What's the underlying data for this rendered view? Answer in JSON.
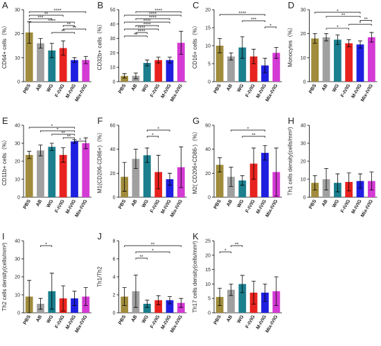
{
  "chart_data": [
    {
      "type": "bar",
      "panel": "A",
      "ylabel": "CD64+ cells（%）",
      "categories": [
        "PBS",
        "AB",
        "WG",
        "F-IVIG",
        "M-IVIG",
        "Mix-IVIG"
      ],
      "colors": [
        "#a08c3c",
        "#a0a0a0",
        "#1b7f8e",
        "#e8231f",
        "#1f1fe0",
        "#d43ad4"
      ],
      "values": [
        20.5,
        16,
        13,
        14,
        9,
        9
      ],
      "errors": [
        4.5,
        2,
        3,
        3,
        1,
        1.5
      ],
      "ylim": [
        0,
        30
      ],
      "yticks": [
        0,
        10,
        20,
        30
      ],
      "significance": [
        {
          "groups": [
            2,
            4
          ],
          "label": "**"
        },
        {
          "groups": [
            3,
            5
          ],
          "label": "**"
        },
        {
          "groups": [
            3,
            4
          ],
          "label": "**"
        },
        {
          "groups": [
            0,
            4
          ],
          "label": "****"
        },
        {
          "groups": [
            0,
            2
          ],
          "label": "***"
        },
        {
          "groups": [
            0,
            3
          ],
          "label": "**"
        },
        {
          "groups": [
            0,
            5
          ],
          "label": "****"
        }
      ]
    },
    {
      "type": "bar",
      "panel": "B",
      "ylabel": "CD32b+ cells（%）",
      "categories": [
        "PBS",
        "AB",
        "WG",
        "F-IVIG",
        "M-IVIG",
        "Mix-IVIG"
      ],
      "colors": [
        "#a08c3c",
        "#a0a0a0",
        "#1b7f8e",
        "#e8231f",
        "#1f1fe0",
        "#d43ad4"
      ],
      "values": [
        4,
        4,
        13,
        15,
        15,
        27
      ],
      "errors": [
        1.5,
        2,
        2,
        2,
        2,
        8
      ],
      "ylim": [
        0,
        50
      ],
      "yticks": [
        0,
        10,
        20,
        30,
        40,
        50
      ],
      "significance": [
        {
          "groups": [
            0,
            2
          ],
          "label": "**"
        },
        {
          "groups": [
            1,
            2
          ],
          "label": "****"
        },
        {
          "groups": [
            0,
            3
          ],
          "label": "****"
        },
        {
          "groups": [
            1,
            3
          ],
          "label": "****"
        },
        {
          "groups": [
            0,
            4
          ],
          "label": "****"
        },
        {
          "groups": [
            1,
            4
          ],
          "label": "****"
        },
        {
          "groups": [
            0,
            5
          ],
          "label": "****"
        },
        {
          "groups": [
            1,
            5
          ],
          "label": "****"
        }
      ]
    },
    {
      "type": "bar",
      "panel": "C",
      "ylabel": "CD16+ cells（%）",
      "categories": [
        "PBS",
        "AB",
        "WG",
        "F-IVIG",
        "M-IVIG",
        "Mix-IVIG"
      ],
      "colors": [
        "#a08c3c",
        "#a0a0a0",
        "#1b7f8e",
        "#e8231f",
        "#1f1fe0",
        "#d43ad4"
      ],
      "values": [
        10,
        7,
        9.5,
        7,
        4.5,
        8
      ],
      "errors": [
        2,
        1,
        3,
        2,
        2,
        1.5
      ],
      "ylim": [
        0,
        20
      ],
      "yticks": [
        0,
        5,
        10,
        15,
        20
      ],
      "significance": [
        {
          "groups": [
            4,
            5
          ],
          "label": "*"
        },
        {
          "groups": [
            2,
            4
          ],
          "label": "***"
        },
        {
          "groups": [
            0,
            4
          ],
          "label": "****"
        }
      ]
    },
    {
      "type": "bar",
      "panel": "D",
      "ylabel": "Monocytes（%）",
      "categories": [
        "PBS",
        "AB",
        "WG",
        "F-IVIG",
        "M-IVIG",
        "Mix-IVIG"
      ],
      "colors": [
        "#a08c3c",
        "#a0a0a0",
        "#1b7f8e",
        "#e8231f",
        "#1f1fe0",
        "#d43ad4"
      ],
      "values": [
        18,
        18.5,
        17.5,
        16,
        15.5,
        18.5
      ],
      "errors": [
        2,
        1.5,
        2,
        1.5,
        1.5,
        2
      ],
      "ylim": [
        0,
        30
      ],
      "yticks": [
        0,
        10,
        20,
        30
      ],
      "significance": [
        {
          "groups": [
            1,
            3
          ],
          "label": "*"
        },
        {
          "groups": [
            3,
            5
          ],
          "label": "*"
        },
        {
          "groups": [
            4,
            5
          ],
          "label": "**"
        },
        {
          "groups": [
            1,
            4
          ],
          "label": "**"
        },
        {
          "groups": [
            0,
            4
          ],
          "label": "*"
        }
      ]
    },
    {
      "type": "bar",
      "panel": "E",
      "ylabel": "CD11b+ cells（%）",
      "categories": [
        "PBS",
        "AB",
        "WG",
        "F-IVIG",
        "M-IVIG",
        "Mix-IVIG"
      ],
      "colors": [
        "#a08c3c",
        "#a0a0a0",
        "#1b7f8e",
        "#e8231f",
        "#1f1fe0",
        "#d43ad4"
      ],
      "values": [
        23.5,
        26,
        28,
        23.5,
        31,
        30
      ],
      "errors": [
        2,
        3,
        2,
        4,
        1,
        3
      ],
      "ylim": [
        0,
        40
      ],
      "yticks": [
        0,
        10,
        20,
        30,
        40
      ],
      "significance": [
        {
          "groups": [
            4,
            5
          ],
          "label": "*"
        },
        {
          "groups": [
            3,
            4
          ],
          "label": "**"
        },
        {
          "groups": [
            2,
            4
          ],
          "label": "**"
        },
        {
          "groups": [
            1,
            4
          ],
          "label": "*"
        },
        {
          "groups": [
            0,
            4
          ],
          "label": "*"
        }
      ]
    },
    {
      "type": "bar",
      "panel": "F",
      "ylabel": "M1(CD206-CD86+)（%）",
      "categories": [
        "PBS",
        "AB",
        "WG",
        "F-IVIG",
        "M-IVIG",
        "Mix-IVIG"
      ],
      "colors": [
        "#a08c3c",
        "#a0a0a0",
        "#1b7f8e",
        "#e8231f",
        "#1f1fe0",
        "#d43ad4"
      ],
      "values": [
        17,
        32,
        35,
        21,
        15,
        25
      ],
      "errors": [
        12,
        8,
        6,
        14,
        5,
        17
      ],
      "ylim": [
        0,
        60
      ],
      "yticks": [
        0,
        20,
        40,
        60
      ],
      "significance": [
        {
          "groups": [
            2,
            3
          ],
          "label": "*"
        },
        {
          "groups": [
            2,
            4
          ],
          "label": "*"
        }
      ]
    },
    {
      "type": "bar",
      "panel": "G",
      "ylabel": "M2( CD206+CD86-)（%）",
      "categories": [
        "PBS",
        "AB",
        "WG",
        "F-IVIG",
        "M-IVIG",
        "Mix-IVIG"
      ],
      "colors": [
        "#a08c3c",
        "#a0a0a0",
        "#1b7f8e",
        "#e8231f",
        "#1f1fe0",
        "#d43ad4"
      ],
      "values": [
        27,
        17,
        14,
        28,
        37,
        21
      ],
      "errors": [
        6,
        8,
        4,
        13,
        6,
        20
      ],
      "ylim": [
        0,
        60
      ],
      "yticks": [
        0,
        20,
        40,
        60
      ],
      "significance": [
        {
          "groups": [
            2,
            4
          ],
          "label": "**"
        },
        {
          "groups": [
            1,
            4
          ],
          "label": "*"
        }
      ]
    },
    {
      "type": "bar",
      "panel": "H",
      "ylabel": "Th1 cells density(cells/mm²)",
      "categories": [
        "PBS",
        "AB",
        "WG",
        "F-IVIG",
        "M-IVIG",
        "Mix-IVIG"
      ],
      "colors": [
        "#a08c3c",
        "#a0a0a0",
        "#1b7f8e",
        "#e8231f",
        "#1f1fe0",
        "#d43ad4"
      ],
      "values": [
        8,
        10,
        8,
        8.5,
        9,
        9
      ],
      "errors": [
        4,
        6,
        5,
        5,
        4,
        5
      ],
      "ylim": [
        0,
        40
      ],
      "yticks": [
        0,
        10,
        20,
        30,
        40
      ],
      "significance": []
    },
    {
      "type": "bar",
      "panel": "I",
      "ylabel": "Th2 cells density(cells/mm²)",
      "categories": [
        "PBS",
        "AB",
        "WG",
        "F-IVIG",
        "M-IVIG",
        "Mix-IVIG"
      ],
      "colors": [
        "#a08c3c",
        "#a0a0a0",
        "#1b7f8e",
        "#e8231f",
        "#1f1fe0",
        "#d43ad4"
      ],
      "values": [
        9,
        5,
        12,
        8,
        8,
        9
      ],
      "errors": [
        9,
        3,
        10,
        7,
        4,
        5
      ],
      "ylim": [
        0,
        40
      ],
      "yticks": [
        0,
        10,
        20,
        30,
        40
      ],
      "significance": [
        {
          "groups": [
            1,
            2
          ],
          "label": "*"
        }
      ]
    },
    {
      "type": "bar",
      "panel": "J",
      "ylabel": "Th1/Th2",
      "categories": [
        "PBS",
        "AB",
        "WG",
        "F-IVIG",
        "M-IVIG",
        "Mix-IVIG"
      ],
      "colors": [
        "#a08c3c",
        "#a0a0a0",
        "#1b7f8e",
        "#e8231f",
        "#1f1fe0",
        "#d43ad4"
      ],
      "values": [
        1.8,
        2.4,
        1.0,
        1.4,
        1.4,
        1.1
      ],
      "errors": [
        1,
        1.8,
        0.4,
        0.5,
        0.4,
        0.5
      ],
      "ylim": [
        0,
        8
      ],
      "yticks": [
        0,
        2,
        4,
        6,
        8
      ],
      "significance": [
        {
          "groups": [
            1,
            2
          ],
          "label": "**"
        },
        {
          "groups": [
            1,
            4
          ],
          "label": "*"
        },
        {
          "groups": [
            0,
            5
          ],
          "label": "**"
        }
      ]
    },
    {
      "type": "bar",
      "panel": "K",
      "ylabel": "Th17 cells density(cells/mm²)",
      "categories": [
        "PBS",
        "AB",
        "WG",
        "F-IVIG",
        "M-IVIG",
        "Mix-IVIG"
      ],
      "colors": [
        "#a08c3c",
        "#a0a0a0",
        "#1b7f8e",
        "#e8231f",
        "#1f1fe0",
        "#d43ad4"
      ],
      "values": [
        5.5,
        8,
        10,
        7,
        7,
        7.5
      ],
      "errors": [
        3,
        2,
        3,
        4,
        3,
        5
      ],
      "ylim": [
        0,
        25
      ],
      "yticks": [
        0,
        5,
        10,
        15,
        20,
        25
      ],
      "significance": [
        {
          "groups": [
            0,
            1
          ],
          "label": "*"
        },
        {
          "groups": [
            1,
            2
          ],
          "label": "**"
        }
      ]
    }
  ]
}
